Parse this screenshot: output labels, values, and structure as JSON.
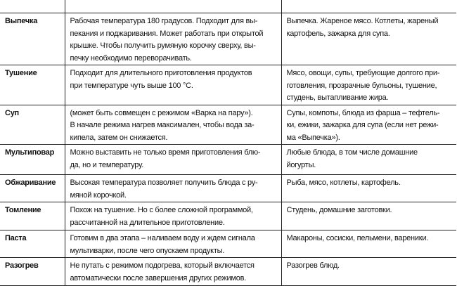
{
  "rows": [
    {
      "mode": "Выпечка",
      "desc": [
        "Рабочая температура 180 градусов. Подходит для вы-",
        "пекания и поджаривания. Может работать при открытой",
        "крышке. Чтобы получить румяную корочку сверху, вы-",
        "печку необходимо переворачивать."
      ],
      "use": [
        "Выпечка. Жареное мясо. Котлеты, жареный",
        "картофель, зажарка для супа."
      ]
    },
    {
      "mode": "Тушение",
      "desc": [
        "Подходит для длительного приготовления продуктов",
        "при температуре чуть выше 100 °С."
      ],
      "use": [
        "Мясо, овощи, супы, требующие долгого при-",
        "готовления, прозрачные бульоны, тушение,",
        "студень, вытапливание жира."
      ]
    },
    {
      "mode": "Суп",
      "desc": [
        "(может быть совмещен с режимом «Варка на пару»).",
        "В начале режима нагрев максимален, чтобы вода за-",
        "кипела, затем он снижается."
      ],
      "use": [
        "Супы, компоты, блюда из фарша – тефтель-",
        "ки, ежики, зажарка для супа (если нет режи-",
        "ма «Выпечка»)."
      ]
    },
    {
      "mode": "Мультиповар",
      "desc": [
        "Можно выставить не только время приготовления блю-",
        "да, но и температуру."
      ],
      "use": [
        "Любые блюда, в том числе домашние",
        "йогурты."
      ]
    },
    {
      "mode": "Обжаривание",
      "desc": [
        "Высокая температура позволяет получить блюда с ру-",
        "мяной корочкой."
      ],
      "use": [
        "Рыба, мясо, котлеты, картофель."
      ]
    },
    {
      "mode": "Томление",
      "desc": [
        "Похож на тушение. Но с более сложной программой,",
        "рассчитанной на длительное приготовление."
      ],
      "use": [
        "Студень, домашние заготовки."
      ]
    },
    {
      "mode": "Паста",
      "desc": [
        "Готовим в два этапа – наливаем воду и ждем сигнала",
        "мультиварки, после чего опускаем продукты."
      ],
      "use": [
        "Макароны, сосиски, пельмени, вареники."
      ]
    },
    {
      "mode": "Разогрев",
      "desc": [
        "Не путать с режимом подогрева, который включается",
        "автоматически после завершения других режимов."
      ],
      "use": [
        "Разогрев блюд."
      ]
    }
  ]
}
